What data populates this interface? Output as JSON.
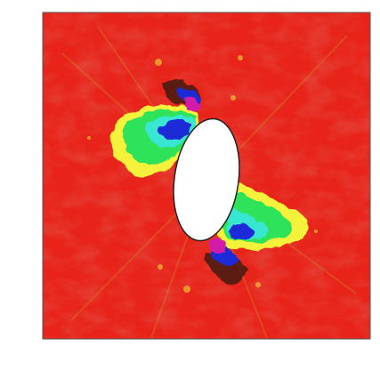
{
  "figure": {
    "description_colors": {
      "background": "#ffffff",
      "border": "#555555",
      "field_base": "#e8241a",
      "field_dark": "#c81510",
      "hole_fill": "#ffffff",
      "hole_stroke": "#222222",
      "yellow": "#f6f23a",
      "green": "#2ee35a",
      "cyan": "#39e6d2",
      "blue": "#1f2bd8",
      "magenta": "#d01aa8",
      "dark": "#3a1a10"
    }
  }
}
